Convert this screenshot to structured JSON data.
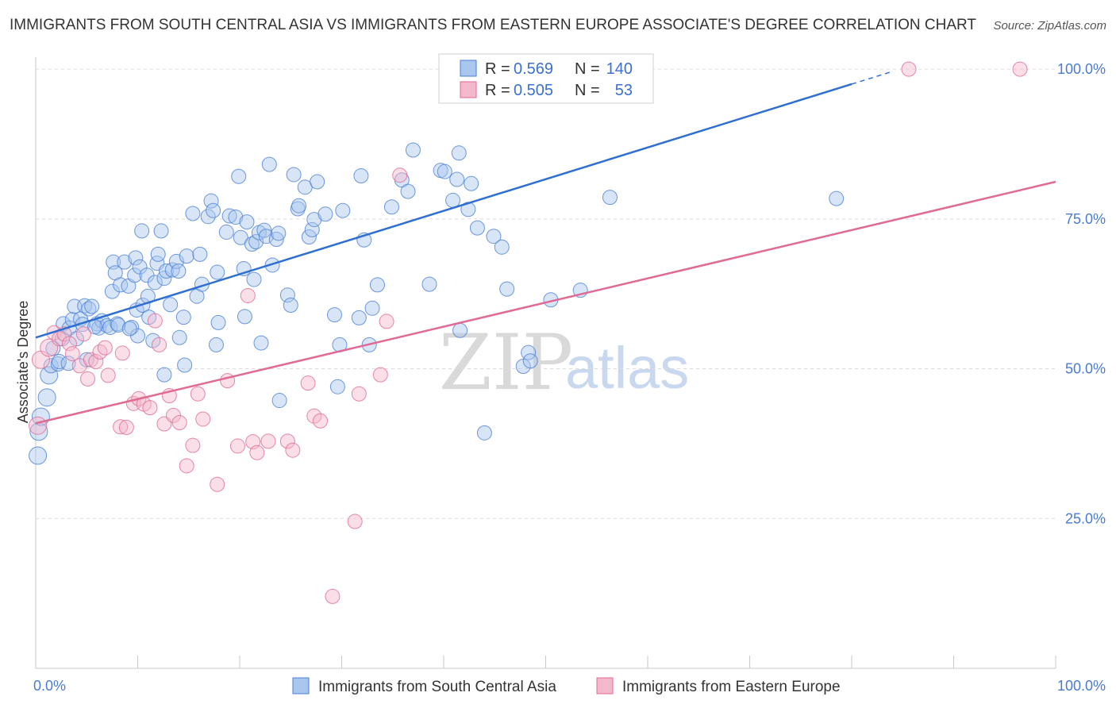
{
  "title": "IMMIGRANTS FROM SOUTH CENTRAL ASIA VS IMMIGRANTS FROM EASTERN EUROPE ASSOCIATE'S DEGREE CORRELATION CHART",
  "source": "Source: ZipAtlas.com",
  "watermark": {
    "zip": "ZIP",
    "atlas": "atlas"
  },
  "colors": {
    "blue": "#4a7fd6",
    "blue_fill": "#a9c6ee",
    "pink": "#e06a94",
    "pink_fill": "#f4b8cc",
    "tick": "#4a7bd0"
  },
  "legend": {
    "r_label": "R =",
    "n_label": "N =",
    "series": [
      {
        "r": "0.569",
        "n": "140"
      },
      {
        "r": "0.505",
        "n": "53"
      }
    ]
  },
  "chart_data": {
    "type": "scatter",
    "title": "IMMIGRANTS FROM SOUTH CENTRAL ASIA VS IMMIGRANTS FROM EASTERN EUROPE ASSOCIATE'S DEGREE CORRELATION CHART",
    "xlabel": "",
    "ylabel": "Associate's Degree",
    "xlim": [
      0,
      100
    ],
    "ylim": [
      0,
      102
    ],
    "x_tick_labels": [
      "0.0%",
      "100.0%"
    ],
    "y_tick_labels": [
      "25.0%",
      "50.0%",
      "75.0%",
      "100.0%"
    ],
    "y_ticks": [
      25,
      50,
      75,
      100
    ],
    "grid": true,
    "legend_position": "top-center",
    "series": [
      {
        "name": "Immigrants from South Central Asia",
        "r": 0.569,
        "n": 140,
        "trend": {
          "x0": 0,
          "y0": 55.2,
          "x1": 80,
          "y1": 97.5,
          "dash_to_x": 84
        },
        "points": [
          [
            0.2,
            35.5
          ],
          [
            0.3,
            39.5
          ],
          [
            0.5,
            42
          ],
          [
            1.1,
            45.2
          ],
          [
            1.3,
            48.9
          ],
          [
            1.5,
            50.5
          ],
          [
            1.7,
            53.4
          ],
          [
            2.2,
            50.8
          ],
          [
            2.3,
            51.2
          ],
          [
            2.6,
            55
          ],
          [
            2.7,
            57.5
          ],
          [
            3.3,
            56.8
          ],
          [
            3.6,
            58.2
          ],
          [
            3.8,
            60.4
          ],
          [
            4,
            55
          ],
          [
            4.4,
            58.3
          ],
          [
            4.6,
            57.4
          ],
          [
            4.8,
            60.5
          ],
          [
            5,
            51.5
          ],
          [
            5.2,
            60
          ],
          [
            5.5,
            60.4
          ],
          [
            6,
            57.5
          ],
          [
            6.2,
            56.8
          ],
          [
            6.5,
            58
          ],
          [
            7,
            57.2
          ],
          [
            7.3,
            56.9
          ],
          [
            7.5,
            62.9
          ],
          [
            7.6,
            67.8
          ],
          [
            7.8,
            66
          ],
          [
            8,
            57.5
          ],
          [
            8.1,
            57.3
          ],
          [
            8.3,
            64
          ],
          [
            8.7,
            67.8
          ],
          [
            9.1,
            63.8
          ],
          [
            9.4,
            56.9
          ],
          [
            9.7,
            65.6
          ],
          [
            9.8,
            68.5
          ],
          [
            9.9,
            59.8
          ],
          [
            10,
            55.5
          ],
          [
            10.2,
            67
          ],
          [
            10.4,
            73
          ],
          [
            10.5,
            60.6
          ],
          [
            10.9,
            65.6
          ],
          [
            11,
            62.1
          ],
          [
            11.1,
            58.6
          ],
          [
            11.5,
            54.7
          ],
          [
            11.7,
            64.4
          ],
          [
            11.9,
            67.6
          ],
          [
            12,
            69.1
          ],
          [
            12.3,
            73
          ],
          [
            12.6,
            65.1
          ],
          [
            12.8,
            66.3
          ],
          [
            13.2,
            60.7
          ],
          [
            13.4,
            66.5
          ],
          [
            13.8,
            67.9
          ],
          [
            14,
            66.3
          ],
          [
            14.1,
            55.2
          ],
          [
            14.5,
            58.6
          ],
          [
            14.6,
            50.6
          ],
          [
            14.8,
            68.8
          ],
          [
            15.4,
            75.9
          ],
          [
            15.8,
            62.1
          ],
          [
            16.1,
            69.1
          ],
          [
            16.3,
            64.1
          ],
          [
            16.9,
            75.4
          ],
          [
            17.2,
            78
          ],
          [
            17.4,
            76.4
          ],
          [
            17.7,
            54
          ],
          [
            17.8,
            66.1
          ],
          [
            17.9,
            57.7
          ],
          [
            18.7,
            72.8
          ],
          [
            19,
            75.5
          ],
          [
            19.6,
            75.3
          ],
          [
            19.9,
            82.1
          ],
          [
            20.1,
            71.9
          ],
          [
            20.4,
            66.7
          ],
          [
            20.7,
            74.5
          ],
          [
            21.2,
            70.8
          ],
          [
            21.4,
            64.9
          ],
          [
            21.6,
            71.2
          ],
          [
            21.9,
            72.7
          ],
          [
            22.1,
            54.3
          ],
          [
            22.4,
            73.1
          ],
          [
            22.6,
            72.1
          ],
          [
            22.9,
            84.1
          ],
          [
            23.2,
            67.3
          ],
          [
            23.6,
            71.6
          ],
          [
            23.8,
            72.6
          ],
          [
            23.9,
            44.7
          ],
          [
            24.7,
            62.3
          ],
          [
            25,
            60.6
          ],
          [
            25.3,
            82.4
          ],
          [
            25.7,
            76.7
          ],
          [
            25.8,
            77.2
          ],
          [
            26.4,
            80.3
          ],
          [
            26.8,
            72
          ],
          [
            27.1,
            73.2
          ],
          [
            27.3,
            74.9
          ],
          [
            27.6,
            81.2
          ],
          [
            28.4,
            75.8
          ],
          [
            29.3,
            59
          ],
          [
            29.6,
            47
          ],
          [
            29.8,
            54
          ],
          [
            30.1,
            76.4
          ],
          [
            31.7,
            58.5
          ],
          [
            31.9,
            82.2
          ],
          [
            32.2,
            71.5
          ],
          [
            32.7,
            54
          ],
          [
            33.5,
            64
          ],
          [
            34.9,
            77
          ],
          [
            35.9,
            81.5
          ],
          [
            36.5,
            79.6
          ],
          [
            37,
            86.5
          ],
          [
            38.6,
            64.1
          ],
          [
            39.7,
            83.1
          ],
          [
            40.1,
            82.9
          ],
          [
            40.9,
            78.1
          ],
          [
            41.3,
            81.6
          ],
          [
            41.5,
            86
          ],
          [
            41.6,
            56.4
          ],
          [
            42.4,
            76.6
          ],
          [
            42.7,
            80.9
          ],
          [
            43.3,
            73.5
          ],
          [
            44,
            39.3
          ],
          [
            44.9,
            72.1
          ],
          [
            45.7,
            70.3
          ],
          [
            46.2,
            63.3
          ],
          [
            47.8,
            50.4
          ],
          [
            48.3,
            52.7
          ],
          [
            48.5,
            51.3
          ],
          [
            50.5,
            61.5
          ],
          [
            53.4,
            63.1
          ],
          [
            56.3,
            78.6
          ],
          [
            78.5,
            78.4
          ],
          [
            3.2,
            50.9
          ],
          [
            5.8,
            57
          ],
          [
            9.2,
            56.7
          ],
          [
            12.6,
            49
          ],
          [
            20.5,
            58.7
          ],
          [
            33,
            60.1
          ]
        ]
      },
      {
        "name": "Immigrants from Eastern Europe",
        "r": 0.505,
        "n": 53,
        "trend": {
          "x0": 0,
          "y0": 40.9,
          "x1": 100,
          "y1": 81.2
        },
        "points": [
          [
            0.2,
            40.5
          ],
          [
            0.5,
            51.5
          ],
          [
            1.3,
            53.5
          ],
          [
            1.8,
            56
          ],
          [
            2.3,
            55
          ],
          [
            2.8,
            55.8
          ],
          [
            3.3,
            54.2
          ],
          [
            3.6,
            52.5
          ],
          [
            4.3,
            50.5
          ],
          [
            4.7,
            55.8
          ],
          [
            5.1,
            48.3
          ],
          [
            5.4,
            51.5
          ],
          [
            5.9,
            51.2
          ],
          [
            6.3,
            52.8
          ],
          [
            6.8,
            53.5
          ],
          [
            7.1,
            48.9
          ],
          [
            8.3,
            40.3
          ],
          [
            8.5,
            52.6
          ],
          [
            8.9,
            40.2
          ],
          [
            9.6,
            44.2
          ],
          [
            10.1,
            45
          ],
          [
            10.6,
            44.1
          ],
          [
            11.2,
            43.5
          ],
          [
            11.7,
            58
          ],
          [
            12.1,
            54
          ],
          [
            12.6,
            40.8
          ],
          [
            13.1,
            45.5
          ],
          [
            13.5,
            42.2
          ],
          [
            14.1,
            41
          ],
          [
            14.8,
            33.8
          ],
          [
            15.4,
            37.2
          ],
          [
            15.9,
            45.8
          ],
          [
            16.4,
            41.6
          ],
          [
            17.8,
            30.7
          ],
          [
            18.8,
            48
          ],
          [
            19.8,
            37.1
          ],
          [
            20.8,
            62.2
          ],
          [
            21.3,
            37.8
          ],
          [
            21.7,
            36
          ],
          [
            22.8,
            37.9
          ],
          [
            24.7,
            37.9
          ],
          [
            25.2,
            36.4
          ],
          [
            26.7,
            47.6
          ],
          [
            27.3,
            42.1
          ],
          [
            27.9,
            41.3
          ],
          [
            29.1,
            12
          ],
          [
            31.3,
            24.5
          ],
          [
            31.7,
            45.8
          ],
          [
            33.8,
            49
          ],
          [
            34.4,
            57.9
          ],
          [
            35.7,
            82.3
          ],
          [
            85.6,
            100
          ],
          [
            96.5,
            100
          ]
        ]
      }
    ]
  }
}
